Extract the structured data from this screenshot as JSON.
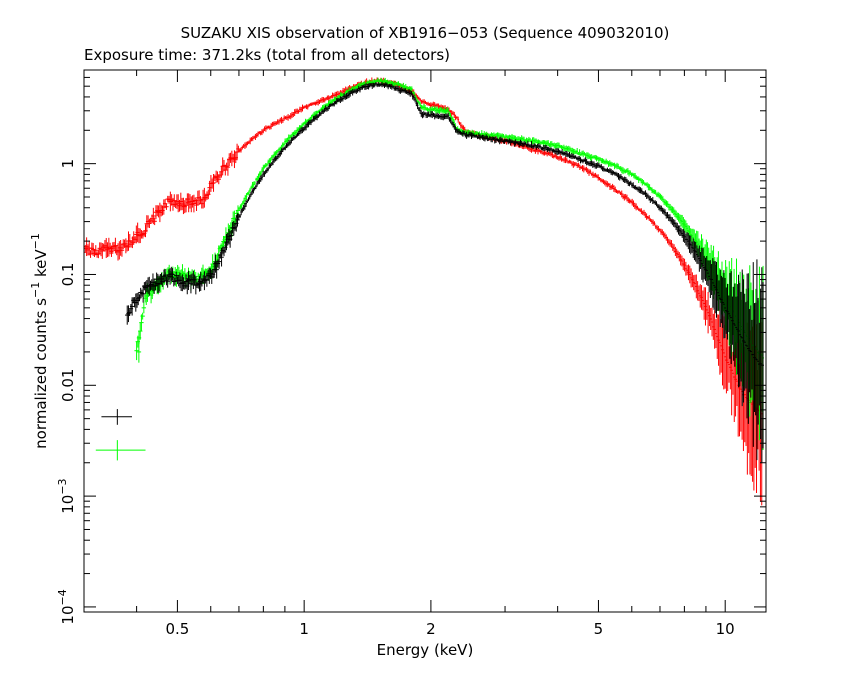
{
  "chart_data": {
    "type": "scatter",
    "title": "SUZAKU XIS observation of XB1916−053 (Sequence 409032010)",
    "subtitle": "Exposure time: 371.2ks (total from all detectors)",
    "xlabel": "Energy (keV)",
    "ylabel": {
      "main": "normalized counts s",
      "sup1": "−1",
      "mid": " keV",
      "sup2": "−1"
    },
    "x_scale": "log",
    "y_scale": "log",
    "xlim": [
      0.3,
      12.5
    ],
    "ylim": [
      9e-05,
      7.0
    ],
    "x_ticks": [
      {
        "value": 0.5,
        "label": "0.5"
      },
      {
        "value": 1,
        "label": "1"
      },
      {
        "value": 2,
        "label": "2"
      },
      {
        "value": 5,
        "label": "5"
      },
      {
        "value": 10,
        "label": "10"
      }
    ],
    "y_ticks": [
      {
        "value": 0.0001,
        "base": "10",
        "exp": "−4"
      },
      {
        "value": 0.001,
        "base": "10",
        "exp": "−3"
      },
      {
        "value": 0.01,
        "base": "0.01",
        "exp": ""
      },
      {
        "value": 0.1,
        "base": "0.1",
        "exp": ""
      },
      {
        "value": 1,
        "base": "1",
        "exp": ""
      }
    ],
    "grid": false,
    "series": [
      {
        "color": "#ff0000",
        "points": [
          [
            0.3,
            0.17
          ],
          [
            0.32,
            0.16
          ],
          [
            0.34,
            0.17
          ],
          [
            0.36,
            0.17
          ],
          [
            0.38,
            0.19
          ],
          [
            0.4,
            0.22
          ],
          [
            0.42,
            0.26
          ],
          [
            0.44,
            0.32
          ],
          [
            0.46,
            0.4
          ],
          [
            0.48,
            0.46
          ],
          [
            0.5,
            0.45
          ],
          [
            0.52,
            0.44
          ],
          [
            0.55,
            0.45
          ],
          [
            0.58,
            0.48
          ],
          [
            0.6,
            0.62
          ],
          [
            0.65,
            0.95
          ],
          [
            0.7,
            1.3
          ],
          [
            0.75,
            1.65
          ],
          [
            0.8,
            2.0
          ],
          [
            0.9,
            2.55
          ],
          [
            1.0,
            3.2
          ],
          [
            1.1,
            3.7
          ],
          [
            1.2,
            4.2
          ],
          [
            1.3,
            4.9
          ],
          [
            1.4,
            5.4
          ],
          [
            1.5,
            5.6
          ],
          [
            1.6,
            5.4
          ],
          [
            1.7,
            5.0
          ],
          [
            1.8,
            4.5
          ],
          [
            1.85,
            4.0
          ],
          [
            1.9,
            3.6
          ],
          [
            2.0,
            3.4
          ],
          [
            2.1,
            3.3
          ],
          [
            2.2,
            3.1
          ],
          [
            2.3,
            2.6
          ],
          [
            2.4,
            2.0
          ],
          [
            2.6,
            1.8
          ],
          [
            3.0,
            1.6
          ],
          [
            3.5,
            1.35
          ],
          [
            4.0,
            1.15
          ],
          [
            4.5,
            0.95
          ],
          [
            5.0,
            0.75
          ],
          [
            5.5,
            0.58
          ],
          [
            6.0,
            0.45
          ],
          [
            6.5,
            0.34
          ],
          [
            7.0,
            0.25
          ],
          [
            7.5,
            0.18
          ],
          [
            8.0,
            0.12
          ],
          [
            8.5,
            0.08
          ],
          [
            9.0,
            0.05
          ],
          [
            9.5,
            0.03
          ],
          [
            10.0,
            0.018
          ],
          [
            10.5,
            0.012
          ],
          [
            11.0,
            0.0085
          ],
          [
            11.5,
            0.007
          ],
          [
            12.0,
            0.006
          ],
          [
            12.3,
            0.0055
          ]
        ]
      },
      {
        "color": "#00ff00",
        "points": [
          [
            0.4,
            0.02
          ],
          [
            0.42,
            0.06
          ],
          [
            0.44,
            0.075
          ],
          [
            0.46,
            0.085
          ],
          [
            0.48,
            0.1
          ],
          [
            0.5,
            0.1
          ],
          [
            0.52,
            0.095
          ],
          [
            0.55,
            0.09
          ],
          [
            0.58,
            0.095
          ],
          [
            0.6,
            0.11
          ],
          [
            0.62,
            0.14
          ],
          [
            0.65,
            0.21
          ],
          [
            0.7,
            0.38
          ],
          [
            0.75,
            0.61
          ],
          [
            0.8,
            0.9
          ],
          [
            0.9,
            1.55
          ],
          [
            1.0,
            2.3
          ],
          [
            1.1,
            3.1
          ],
          [
            1.2,
            3.9
          ],
          [
            1.3,
            4.7
          ],
          [
            1.4,
            5.3
          ],
          [
            1.5,
            5.6
          ],
          [
            1.6,
            5.4
          ],
          [
            1.7,
            5.1
          ],
          [
            1.8,
            4.7
          ],
          [
            1.9,
            3.2
          ],
          [
            2.0,
            3.1
          ],
          [
            2.1,
            3.05
          ],
          [
            2.2,
            3.0
          ],
          [
            2.3,
            2.1
          ],
          [
            2.4,
            1.9
          ],
          [
            2.6,
            1.85
          ],
          [
            3.0,
            1.75
          ],
          [
            3.5,
            1.6
          ],
          [
            4.0,
            1.45
          ],
          [
            4.5,
            1.25
          ],
          [
            5.0,
            1.1
          ],
          [
            5.5,
            0.95
          ],
          [
            6.0,
            0.8
          ],
          [
            6.5,
            0.65
          ],
          [
            7.0,
            0.5
          ],
          [
            7.5,
            0.38
          ],
          [
            8.0,
            0.28
          ],
          [
            8.5,
            0.2
          ],
          [
            9.0,
            0.14
          ],
          [
            9.5,
            0.095
          ],
          [
            10.0,
            0.065
          ],
          [
            10.5,
            0.045
          ],
          [
            11.0,
            0.032
          ],
          [
            11.5,
            0.024
          ],
          [
            12.0,
            0.02
          ],
          [
            12.3,
            0.018
          ]
        ]
      },
      {
        "color": "#000000",
        "points": [
          [
            0.38,
            0.045
          ],
          [
            0.4,
            0.06
          ],
          [
            0.42,
            0.075
          ],
          [
            0.44,
            0.085
          ],
          [
            0.46,
            0.09
          ],
          [
            0.48,
            0.095
          ],
          [
            0.5,
            0.09
          ],
          [
            0.52,
            0.085
          ],
          [
            0.55,
            0.085
          ],
          [
            0.58,
            0.09
          ],
          [
            0.6,
            0.1
          ],
          [
            0.62,
            0.12
          ],
          [
            0.65,
            0.18
          ],
          [
            0.7,
            0.33
          ],
          [
            0.75,
            0.54
          ],
          [
            0.8,
            0.8
          ],
          [
            0.9,
            1.4
          ],
          [
            1.0,
            2.1
          ],
          [
            1.1,
            2.9
          ],
          [
            1.2,
            3.7
          ],
          [
            1.3,
            4.4
          ],
          [
            1.4,
            5.0
          ],
          [
            1.5,
            5.2
          ],
          [
            1.6,
            5.0
          ],
          [
            1.7,
            4.6
          ],
          [
            1.8,
            4.3
          ],
          [
            1.9,
            2.8
          ],
          [
            2.0,
            2.75
          ],
          [
            2.1,
            2.7
          ],
          [
            2.2,
            2.65
          ],
          [
            2.3,
            2.0
          ],
          [
            2.4,
            1.85
          ],
          [
            2.6,
            1.75
          ],
          [
            3.0,
            1.6
          ],
          [
            3.5,
            1.45
          ],
          [
            4.0,
            1.3
          ],
          [
            4.5,
            1.1
          ],
          [
            5.0,
            0.95
          ],
          [
            5.5,
            0.8
          ],
          [
            6.0,
            0.65
          ],
          [
            6.5,
            0.52
          ],
          [
            7.0,
            0.4
          ],
          [
            7.5,
            0.3
          ],
          [
            8.0,
            0.22
          ],
          [
            8.5,
            0.16
          ],
          [
            9.0,
            0.11
          ],
          [
            9.5,
            0.075
          ],
          [
            10.0,
            0.05
          ],
          [
            10.5,
            0.036
          ],
          [
            11.0,
            0.026
          ],
          [
            11.5,
            0.02
          ],
          [
            12.0,
            0.016
          ],
          [
            12.3,
            0.015
          ]
        ]
      }
    ],
    "outliers": [
      {
        "color": "#000000",
        "x": 0.36,
        "y": 0.0052,
        "xerr": [
          0.33,
          0.39
        ],
        "yerr": [
          0.0044,
          0.0061
        ]
      },
      {
        "color": "#00ff00",
        "x": 0.36,
        "y": 0.0026,
        "xerr": [
          0.32,
          0.42
        ],
        "yerr": [
          0.0021,
          0.0032
        ]
      },
      {
        "color": "#00ff00",
        "x": 0.405,
        "y": 0.02,
        "xerr": [
          0.4,
          0.41
        ],
        "yerr": [
          0.016,
          0.025
        ]
      }
    ]
  }
}
